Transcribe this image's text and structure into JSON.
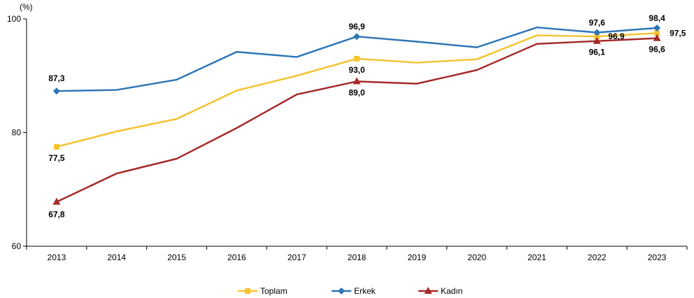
{
  "chart_data": {
    "type": "line",
    "title": "",
    "xlabel": "",
    "ylabel": "(%)",
    "ylim": [
      60,
      100
    ],
    "yticks": [
      60,
      80,
      100
    ],
    "x": [
      "2013",
      "2014",
      "2015",
      "2016",
      "2017",
      "2018",
      "2019",
      "2020",
      "2021",
      "2022",
      "2023"
    ],
    "grid": false,
    "legend_position": "bottom",
    "series": [
      {
        "name": "Toplam",
        "color": "#F4C430",
        "marker": "square",
        "values": [
          77.5,
          80.2,
          82.4,
          87.4,
          90.0,
          93.0,
          92.3,
          92.9,
          97.1,
          96.9,
          97.5
        ],
        "labels": {
          "0": "77,5",
          "5": "93,0",
          "9": "96,9",
          "10": "97,5"
        }
      },
      {
        "name": "Erkek",
        "color": "#2E75B6",
        "marker": "diamond",
        "values": [
          87.3,
          87.5,
          89.3,
          94.2,
          93.3,
          96.9,
          96.0,
          95.0,
          98.5,
          97.6,
          98.4
        ],
        "labels": {
          "0": "87,3",
          "5": "96,9",
          "9": "97,6",
          "10": "98,4"
        }
      },
      {
        "name": "Kadın",
        "color": "#A52A2A",
        "marker": "triangle",
        "values": [
          67.8,
          72.8,
          75.4,
          80.8,
          86.7,
          89.0,
          88.6,
          91.0,
          95.6,
          96.1,
          96.6
        ],
        "labels": {
          "0": "67,8",
          "5": "89,0",
          "9": "96,1",
          "10": "96,6"
        }
      }
    ]
  }
}
